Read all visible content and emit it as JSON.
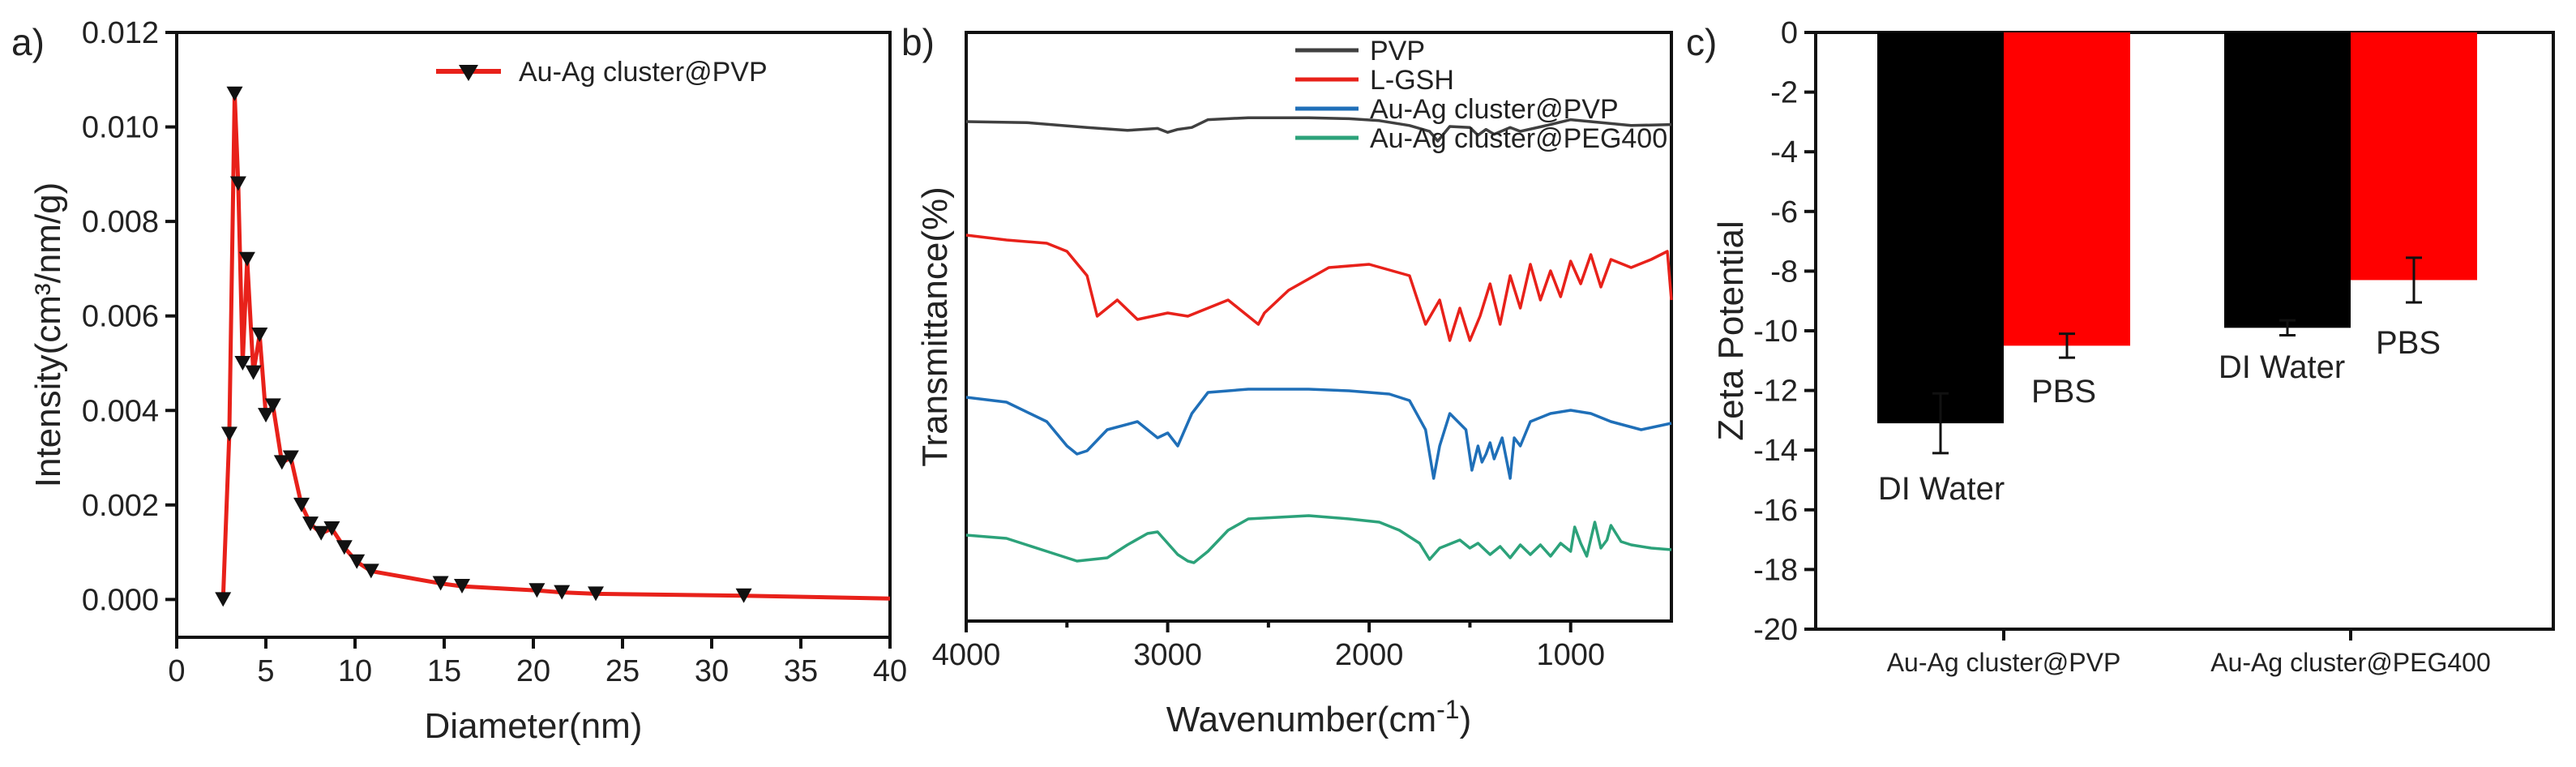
{
  "chart_data": [
    {
      "panel": "a)",
      "type": "line",
      "xlabel": "Diameter(nm)",
      "ylabel": "Intensity(cm³/nm/g)",
      "xlim": [
        0,
        40
      ],
      "ylim": [
        -0.0008,
        0.012
      ],
      "xticks": [
        "0",
        "5",
        "10",
        "15",
        "20",
        "25",
        "30",
        "35",
        "40"
      ],
      "yticks": [
        "0.000",
        "0.002",
        "0.004",
        "0.006",
        "0.008",
        "0.010",
        "0.012"
      ],
      "legend": "top-right",
      "series": [
        {
          "name": "Au-Ag cluster@PVP",
          "color": "#e8211a",
          "marker": "down-triangle",
          "x": [
            2.6,
            2.95,
            3.25,
            3.45,
            3.7,
            3.95,
            4.3,
            4.65,
            5.0,
            5.4,
            5.9,
            6.4,
            7.0,
            7.5,
            8.1,
            8.7,
            9.4,
            10.1,
            10.9,
            14.8,
            16.0,
            20.2,
            21.6,
            23.5,
            31.8,
            40.0
          ],
          "y": [
            0.0,
            0.0035,
            0.0107,
            0.0088,
            0.005,
            0.0072,
            0.0048,
            0.0056,
            0.0039,
            0.0041,
            0.0029,
            0.003,
            0.002,
            0.0016,
            0.0014,
            0.0015,
            0.0011,
            0.0008,
            0.0006,
            0.00034,
            0.00028,
            0.00019,
            0.00015,
            0.00012,
            8e-05,
            2e-05
          ]
        }
      ]
    },
    {
      "panel": "b)",
      "type": "line",
      "xlabel": "Wavenumber(cm",
      "xlabel_sup": "-1",
      "xlabel_close": ")",
      "ylabel": "Transmittance(%)",
      "xlim": [
        4000,
        500
      ],
      "xticks": [
        "4000",
        "3000",
        "2000",
        "1000"
      ],
      "xtick_values": [
        4000,
        3000,
        2000,
        1000
      ],
      "legend": "top-center",
      "series": [
        {
          "name": "PVP",
          "color": "#404040",
          "offset": 0,
          "x": [
            4000,
            3700,
            3400,
            3200,
            3050,
            3000,
            2950,
            2880,
            2800,
            2600,
            2300,
            2100,
            1950,
            1800,
            1700,
            1660,
            1600,
            1500,
            1460,
            1420,
            1380,
            1300,
            1250,
            1100,
            1000,
            900,
            700,
            500
          ],
          "y": [
            0,
            -0.1,
            -0.6,
            -0.9,
            -0.7,
            -1.1,
            -0.8,
            -0.6,
            0.2,
            0.4,
            0.4,
            0.3,
            0.1,
            -0.4,
            -1.0,
            -2.0,
            -0.5,
            -0.6,
            -1.4,
            -0.8,
            -1.3,
            -0.6,
            -1.0,
            -0.3,
            0.2,
            0.0,
            -0.4,
            -0.3
          ]
        },
        {
          "name": "L-GSH",
          "color": "#e8211a",
          "offset": 1,
          "x": [
            4000,
            3800,
            3600,
            3500,
            3400,
            3350,
            3250,
            3150,
            3000,
            2900,
            2700,
            2550,
            2520,
            2400,
            2200,
            2000,
            1800,
            1720,
            1650,
            1600,
            1550,
            1500,
            1450,
            1400,
            1350,
            1300,
            1250,
            1200,
            1150,
            1100,
            1050,
            1000,
            950,
            900,
            850,
            800,
            700,
            600,
            520,
            500
          ],
          "y": [
            0,
            -0.3,
            -0.5,
            -1.0,
            -2.5,
            -5.0,
            -4.0,
            -5.2,
            -4.8,
            -5.0,
            -4.0,
            -5.5,
            -4.8,
            -3.4,
            -2.0,
            -1.8,
            -2.5,
            -5.5,
            -4.0,
            -6.5,
            -4.5,
            -6.5,
            -5.0,
            -3.0,
            -5.5,
            -2.5,
            -4.5,
            -1.8,
            -4.0,
            -2.2,
            -3.8,
            -1.6,
            -3.0,
            -1.2,
            -3.2,
            -1.5,
            -2.0,
            -1.5,
            -1.0,
            -4.0
          ]
        },
        {
          "name": "Au-Ag cluster@PVP",
          "color": "#1f6fb8",
          "offset": 2,
          "x": [
            4000,
            3800,
            3600,
            3500,
            3450,
            3400,
            3300,
            3150,
            3050,
            3000,
            2950,
            2880,
            2800,
            2600,
            2300,
            2100,
            1900,
            1800,
            1720,
            1680,
            1650,
            1600,
            1520,
            1490,
            1460,
            1440,
            1420,
            1400,
            1380,
            1340,
            1300,
            1280,
            1250,
            1200,
            1100,
            1000,
            900,
            800,
            650,
            500
          ],
          "y": [
            0,
            -0.3,
            -1.5,
            -3.0,
            -3.5,
            -3.3,
            -2.0,
            -1.5,
            -2.5,
            -2.2,
            -3.0,
            -1.0,
            0.3,
            0.5,
            0.5,
            0.4,
            0.2,
            -0.2,
            -2.0,
            -5.0,
            -3.0,
            -1.0,
            -2.0,
            -4.5,
            -3.0,
            -4.0,
            -3.5,
            -2.8,
            -3.8,
            -2.5,
            -5.0,
            -2.5,
            -3.0,
            -1.5,
            -1.0,
            -0.8,
            -1.0,
            -1.5,
            -2.0,
            -1.6
          ]
        },
        {
          "name": "Au-Ag cluster@PEG400",
          "color": "#2ca27a",
          "offset": 3,
          "x": [
            4000,
            3800,
            3600,
            3450,
            3300,
            3200,
            3100,
            3050,
            2950,
            2900,
            2870,
            2800,
            2700,
            2600,
            2300,
            2100,
            1950,
            1850,
            1750,
            1700,
            1650,
            1550,
            1500,
            1460,
            1400,
            1350,
            1300,
            1250,
            1200,
            1150,
            1100,
            1050,
            1000,
            980,
            950,
            920,
            880,
            850,
            820,
            800,
            750,
            700,
            600,
            500
          ],
          "y": [
            0,
            -0.2,
            -1.0,
            -1.6,
            -1.4,
            -0.6,
            0.1,
            0.2,
            -1.2,
            -1.6,
            -1.7,
            -1.0,
            0.3,
            1.0,
            1.2,
            1.0,
            0.8,
            0.3,
            -0.5,
            -1.5,
            -0.8,
            -0.3,
            -0.8,
            -0.5,
            -1.2,
            -0.7,
            -1.4,
            -0.6,
            -1.2,
            -0.6,
            -1.3,
            -0.5,
            -1.0,
            0.5,
            -0.5,
            -1.3,
            0.8,
            -0.8,
            -0.3,
            0.6,
            -0.4,
            -0.6,
            -0.8,
            -0.9
          ]
        }
      ]
    },
    {
      "panel": "c)",
      "type": "bar",
      "ylabel": "Zeta Potential",
      "ylim": [
        -20,
        0
      ],
      "yticks": [
        "0",
        "-2",
        "-4",
        "-6",
        "-8",
        "-10",
        "-12",
        "-14",
        "-16",
        "-18",
        "-20"
      ],
      "categories": [
        "Au-Ag cluster@PVP",
        "Au-Ag cluster@PEG400"
      ],
      "series": [
        {
          "color": "#000000",
          "values": [
            -13.1,
            -9.9
          ],
          "errors": [
            1.0,
            0.25
          ]
        },
        {
          "color": "#ff0000",
          "values": [
            -10.5,
            -8.3
          ],
          "errors": [
            0.4,
            0.75
          ]
        }
      ],
      "annotations": [
        "DI Water",
        "PBS",
        "DI Water",
        "PBS"
      ]
    }
  ]
}
